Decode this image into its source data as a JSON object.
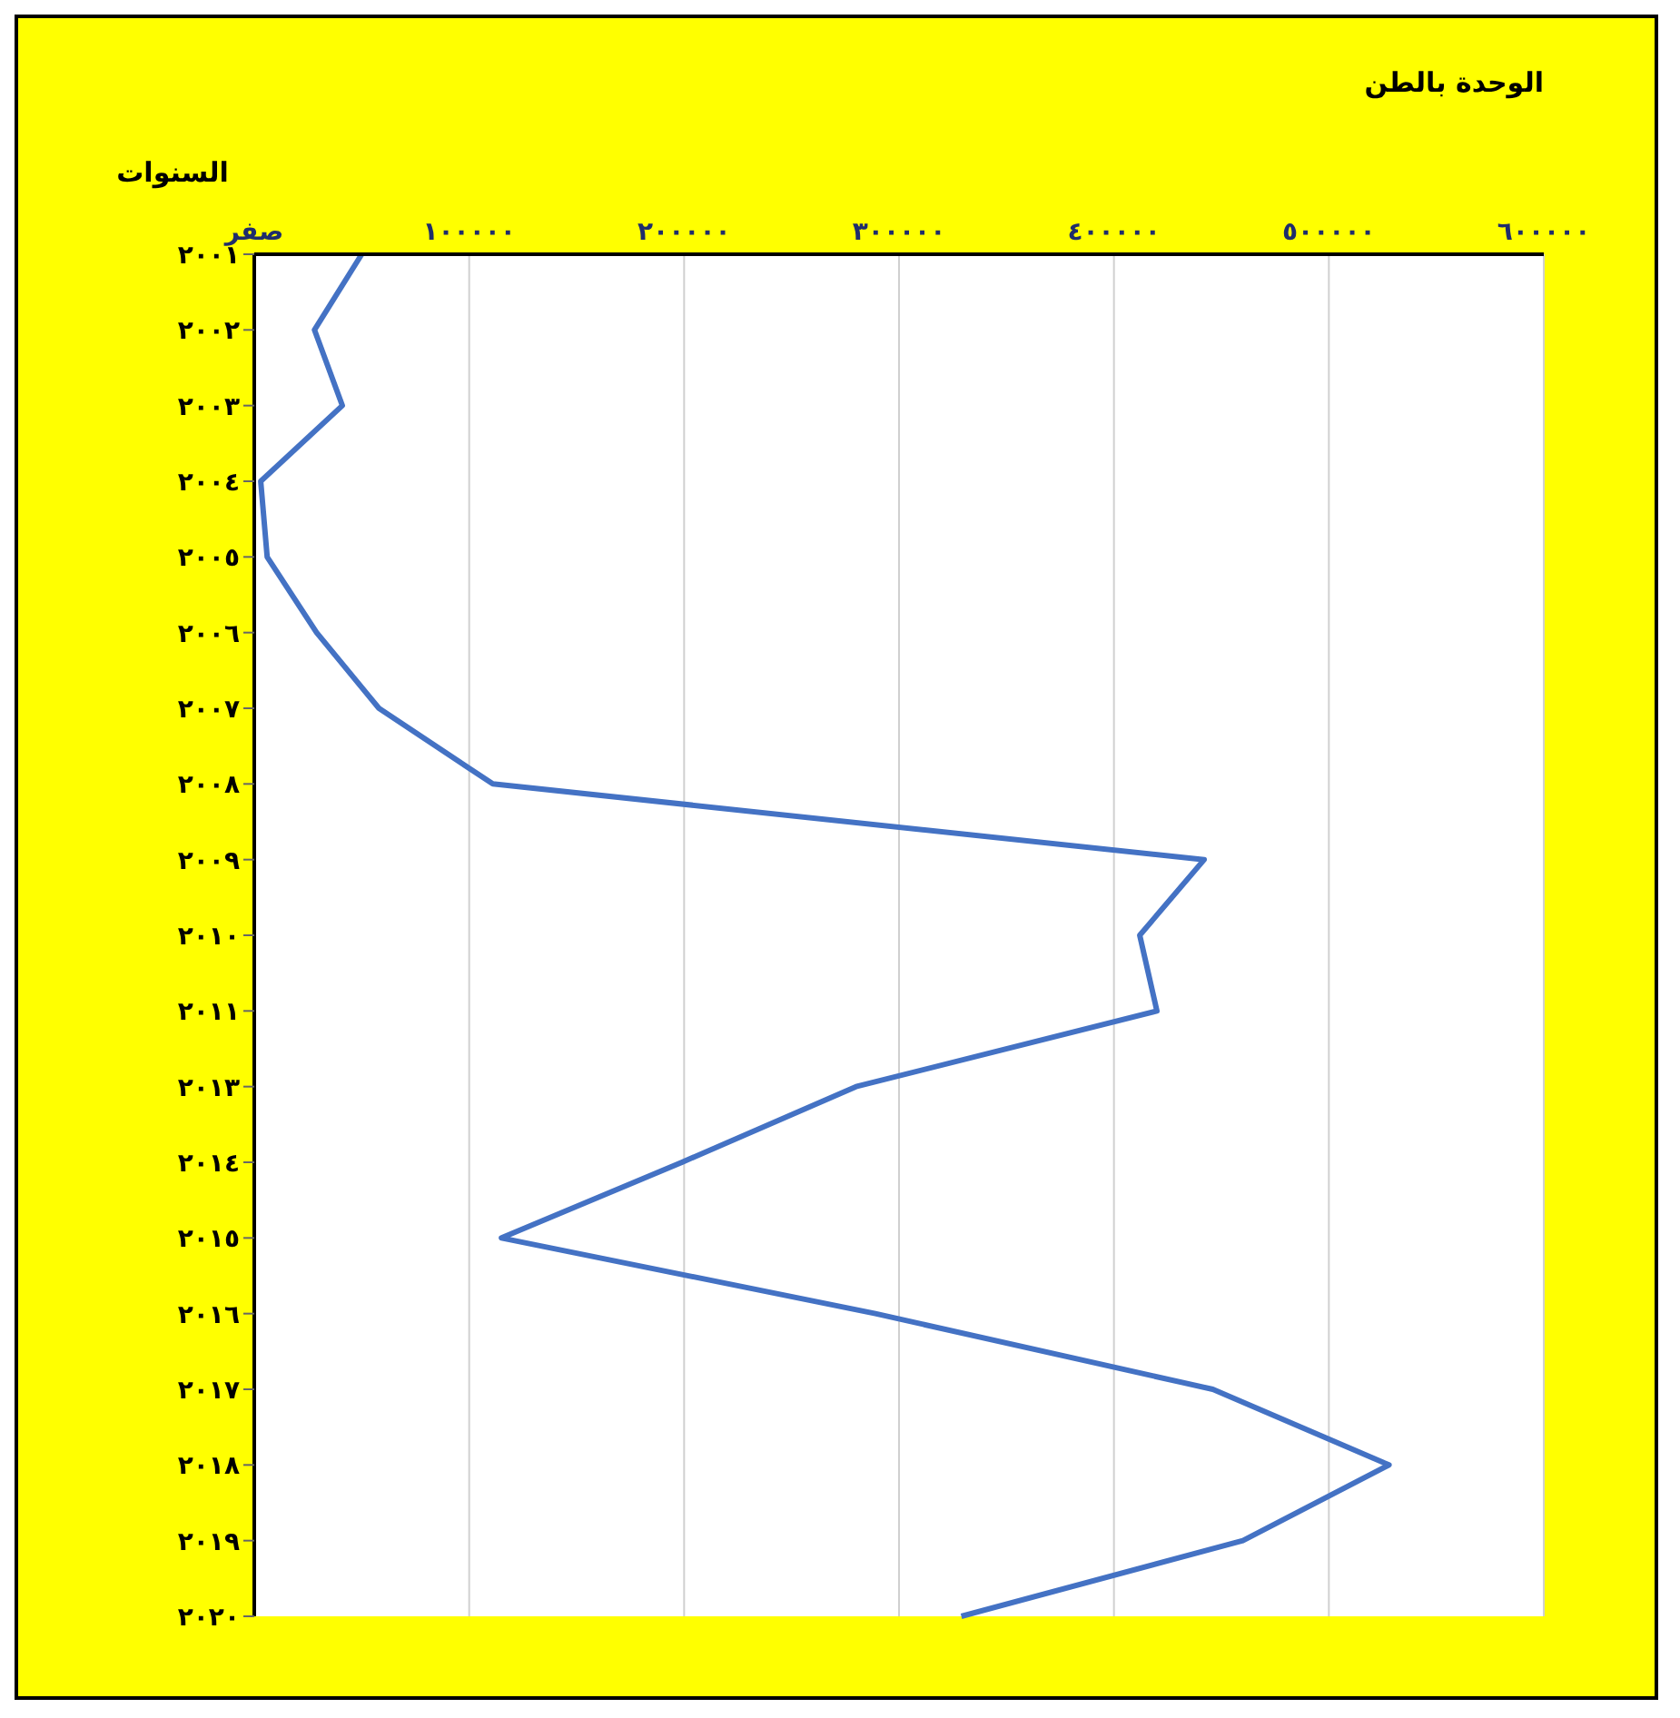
{
  "chart_data": {
    "type": "line",
    "orientation": "horizontal",
    "xlabel": "الوحدة بالطن",
    "ylabel": "السنوات",
    "categories": [
      "٢٠٠١",
      "٢٠٠٢",
      "٢٠٠٣",
      "٢٠٠٤",
      "٢٠٠٥",
      "٢٠٠٦",
      "٢٠٠٧",
      "٢٠٠٨",
      "٢٠٠٩",
      "٢٠١٠",
      "٢٠١١",
      "٢٠١٣",
      "٢٠١٤",
      "٢٠١٥",
      "٢٠١٦",
      "٢٠١٧",
      "٢٠١٨",
      "٢٠١٩",
      "٢٠٢٠"
    ],
    "series": [
      {
        "color": "#4472c4",
        "values": [
          50000,
          28000,
          41000,
          3000,
          6000,
          29000,
          58000,
          111000,
          442000,
          412000,
          420000,
          280000,
          199000,
          115000,
          289000,
          446000,
          528000,
          460000,
          329000
        ]
      }
    ],
    "xlim": [
      0,
      600000
    ],
    "xticks": [
      {
        "value": 0,
        "label": "صفر"
      },
      {
        "value": 100000,
        "label": "١٠٠٠٠٠"
      },
      {
        "value": 200000,
        "label": "٢٠٠٠٠٠"
      },
      {
        "value": 300000,
        "label": "٣٠٠٠٠٠"
      },
      {
        "value": 400000,
        "label": "٤٠٠٠٠٠"
      },
      {
        "value": 500000,
        "label": "٥٠٠٠٠٠"
      },
      {
        "value": 600000,
        "label": "٦٠٠٠٠٠"
      }
    ],
    "grid": "x",
    "marker": "none",
    "line_style": "solid"
  }
}
